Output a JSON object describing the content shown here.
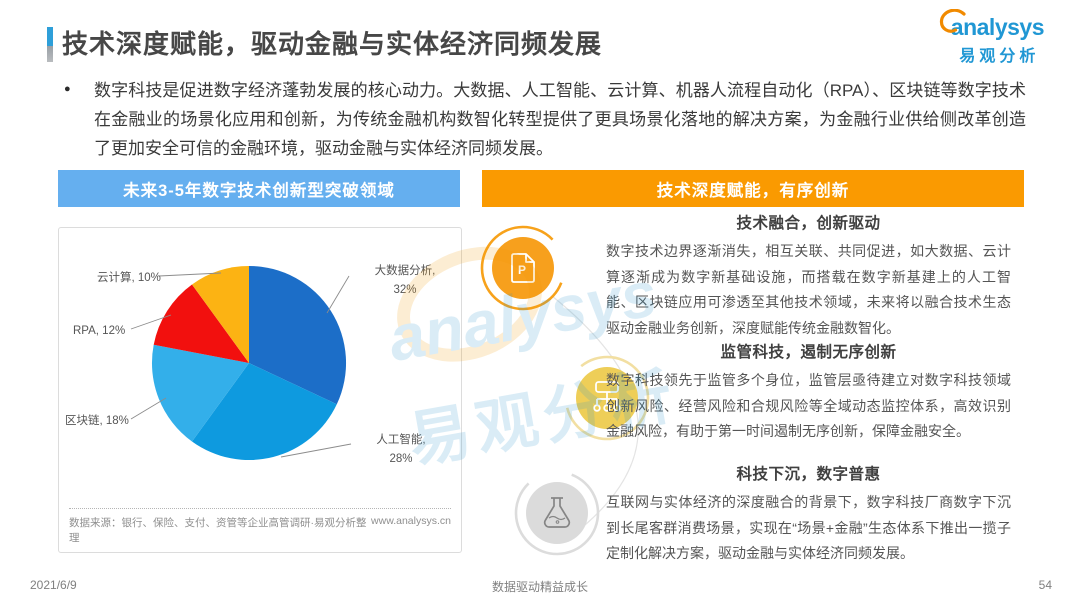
{
  "page": {
    "title": "技术深度赋能，驱动金融与实体经济同频发展",
    "bullet_marker": "●",
    "intro": "数字科技是促进数字经济蓬勃发展的核心动力。大数据、人工智能、云计算、机器人流程自动化（RPA）、区块链等数字技术在金融业的场景化应用和创新，为传统金融机构数智化转型提供了更具场景化落地的解决方案，为金融行业供给侧改革创造了更加安全可信的金融环境，驱动金融与实体经济同频发展。",
    "footer": {
      "date": "2021/6/9",
      "slogan": "数据驱动精益成长",
      "page_number": "54"
    }
  },
  "logo": {
    "brand": "analysys",
    "brand_cn": "易观分析",
    "brand_color": "#2097d4",
    "swoosh_color": "#f18a00"
  },
  "left_panel": {
    "header": "未来3-5年数字技术创新型突破领域",
    "header_color": "#65afef",
    "source": "数据来源：银行、保险、支付、资管等企业高管调研·易观分析整理",
    "website": "www.analysys.cn"
  },
  "chart_data": {
    "type": "pie",
    "title": "未来3-5年数字技术创新型突破领域",
    "unit": "%",
    "start_angle": "top, clockwise",
    "slices": [
      {
        "name": "大数据分析",
        "value": 32,
        "color": "#1c6ec8",
        "label_lines": [
          "大数据分析,",
          "32%"
        ]
      },
      {
        "name": "人工智能",
        "value": 28,
        "color": "#0e9adf",
        "label_lines": [
          "人工智能,",
          "28%"
        ]
      },
      {
        "name": "区块链",
        "value": 18,
        "color": "#33afea",
        "label_lines": [
          "区块链, 18%"
        ]
      },
      {
        "name": "RPA",
        "value": 12,
        "color": "#f2100e",
        "label_lines": [
          "RPA, 12%"
        ]
      },
      {
        "name": "云计算",
        "value": 10,
        "color": "#fcb313",
        "label_lines": [
          "云计算, 10%"
        ]
      }
    ]
  },
  "right_panel": {
    "header": "技术深度赋能，有序创新",
    "header_color": "#fa9a01",
    "sections": [
      {
        "icon": "document-p-icon",
        "icon_letter": "P",
        "title": "技术融合，创新驱动",
        "body": "数字技术边界逐渐消失，相互关联、共同促进，如大数据、云计算逐渐成为数字新基础设施，而搭载在数字新基建上的人工智能、区块链应用可渗透至其他技术领域，未来将以融合技术生态驱动金融业务创新，深度赋能传统金融数智化。"
      },
      {
        "icon": "org-chart-icon",
        "title": "监管科技，遏制无序创新",
        "body": "数字科技领先于监管多个身位，监管层亟待建立对数字科技领域创新风险、经营风险和合规风险等全域动态监控体系，高效识别金融风险，有助于第一时间遏制无序创新，保障金融安全。"
      },
      {
        "icon": "flask-icon",
        "title": "科技下沉，数字普惠",
        "body": "互联网与实体经济的深度融合的背景下，数字科技厂商数字下沉到长尾客群消费场景，实现在“场景+金融”生态体系下推出一揽子定制化解决方案，驱动金融与实体经济同频发展。"
      }
    ]
  },
  "watermark": {
    "text_en": "analysys",
    "text_cn": "易观分析"
  }
}
